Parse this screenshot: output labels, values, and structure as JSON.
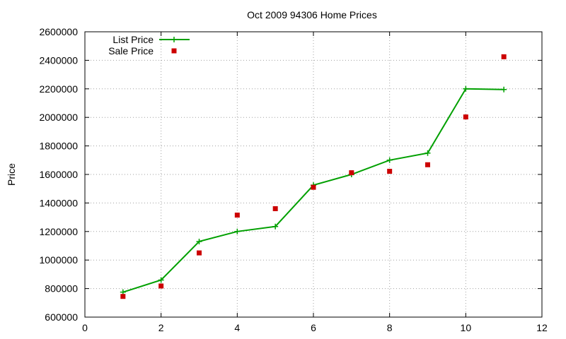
{
  "chart_data": {
    "type": "line",
    "title": "Oct 2009 94306 Home Prices",
    "xlabel": "",
    "ylabel": "Price",
    "xlim": [
      0,
      12
    ],
    "ylim": [
      600000,
      2600000
    ],
    "x_ticks": [
      0,
      2,
      4,
      6,
      8,
      10,
      12
    ],
    "y_ticks": [
      600000,
      800000,
      1000000,
      1200000,
      1400000,
      1600000,
      1800000,
      2000000,
      2200000,
      2400000,
      2600000
    ],
    "grid": true,
    "legend_position": "top-left",
    "series": [
      {
        "name": "List Price",
        "style": "line+plus",
        "color": "#00a000",
        "x": [
          1,
          2,
          3,
          4,
          5,
          6,
          7,
          8,
          9,
          10,
          11
        ],
        "values": [
          775000,
          860000,
          1130000,
          1200000,
          1235000,
          1525000,
          1600000,
          1700000,
          1750000,
          2200000,
          2195000
        ]
      },
      {
        "name": "Sale Price",
        "style": "square",
        "color": "#cc0000",
        "x": [
          1,
          2,
          3,
          4,
          5,
          6,
          7,
          8,
          9,
          10,
          11
        ],
        "values": [
          745000,
          818000,
          1050000,
          1315000,
          1360000,
          1510000,
          1612000,
          1622000,
          1668000,
          2003000,
          2425000
        ]
      }
    ]
  }
}
